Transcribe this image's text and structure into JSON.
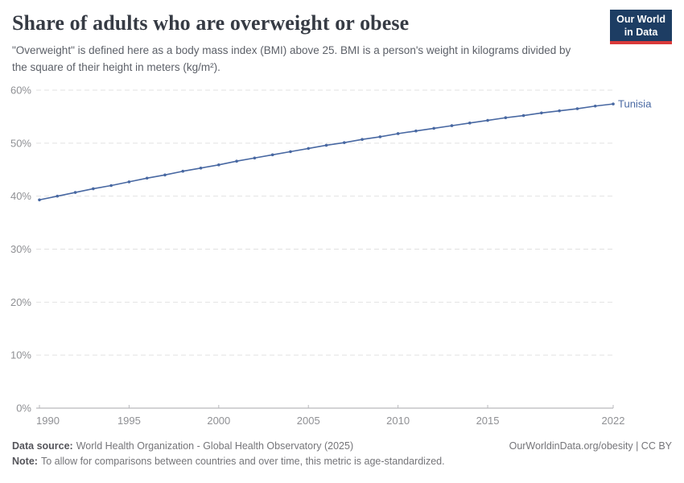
{
  "header": {
    "title": "Share of adults who are overweight or obese",
    "subtitle": "\"Overweight\" is defined here as a body mass index (BMI) above 25. BMI is a person's weight in kilograms divided by the square of their height in meters (kg/m²).",
    "logo": {
      "line1": "Our World",
      "line2": "in Data"
    },
    "logo_colors": {
      "background": "#1d3d63",
      "stripe": "#d93a3a"
    }
  },
  "chart_data": {
    "type": "line",
    "title": "Share of adults who are overweight or obese",
    "xlabel": "",
    "ylabel": "",
    "ylim": [
      0,
      60
    ],
    "y_ticks": [
      0,
      10,
      20,
      30,
      40,
      50,
      60
    ],
    "y_tick_suffix": "%",
    "x_ticks": [
      1990,
      1995,
      2000,
      2005,
      2010,
      2015,
      2022
    ],
    "grid": "horizontal-dashed",
    "legend": "end-of-line-label",
    "x": [
      1990,
      1991,
      1992,
      1993,
      1994,
      1995,
      1996,
      1997,
      1998,
      1999,
      2000,
      2001,
      2002,
      2003,
      2004,
      2005,
      2006,
      2007,
      2008,
      2009,
      2010,
      2011,
      2012,
      2013,
      2014,
      2015,
      2016,
      2017,
      2018,
      2019,
      2020,
      2021,
      2022
    ],
    "series": [
      {
        "name": "Tunisia",
        "color": "#4868a2",
        "values": [
          39.3,
          40.0,
          40.7,
          41.4,
          42.0,
          42.7,
          43.4,
          44.0,
          44.7,
          45.3,
          45.9,
          46.6,
          47.2,
          47.8,
          48.4,
          49.0,
          49.6,
          50.1,
          50.7,
          51.2,
          51.8,
          52.3,
          52.8,
          53.3,
          53.8,
          54.3,
          54.8,
          55.2,
          55.7,
          56.1,
          56.5,
          57.0,
          57.4
        ]
      }
    ]
  },
  "footer": {
    "data_source_label": "Data source:",
    "data_source": "World Health Organization - Global Health Observatory (2025)",
    "link": "OurWorldinData.org/obesity | CC BY",
    "note_label": "Note:",
    "note": "To allow for comparisons between countries and over time, this metric is age-standardized."
  }
}
